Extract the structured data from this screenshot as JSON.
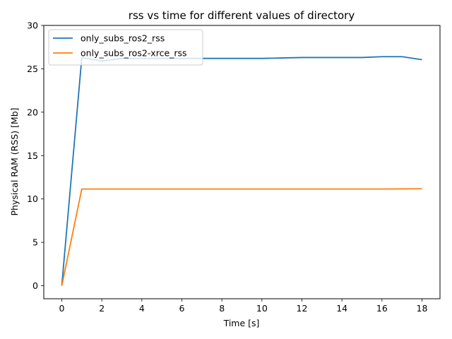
{
  "chart_data": {
    "type": "line",
    "title": "rss vs time for different values of directory",
    "xlabel": "Time [s]",
    "ylabel": "Physical RAM (RSS) [Mb]",
    "xlim": [
      -0.9,
      18.9
    ],
    "ylim": [
      -1.5,
      30
    ],
    "xticks": [
      0,
      2,
      4,
      6,
      8,
      10,
      12,
      14,
      16,
      18
    ],
    "yticks": [
      0,
      5,
      10,
      15,
      20,
      25,
      30
    ],
    "grid": false,
    "legend_position": "top-left",
    "series": [
      {
        "name": "only_subs_ros2_rss",
        "color": "#1f77b4",
        "x": [
          0,
          1,
          2,
          3,
          4,
          5,
          6,
          7,
          8,
          9,
          10,
          11,
          12,
          13,
          14,
          15,
          16,
          17,
          18
        ],
        "y": [
          0,
          26.3,
          25.9,
          26.2,
          26.2,
          26.2,
          26.2,
          26.2,
          26.2,
          26.2,
          26.2,
          26.25,
          26.3,
          26.3,
          26.3,
          26.3,
          26.4,
          26.4,
          26.05
        ]
      },
      {
        "name": "only_subs_ros2-xrce_rss",
        "color": "#ff7f0e",
        "x": [
          0,
          1,
          2,
          3,
          4,
          5,
          6,
          7,
          8,
          9,
          10,
          11,
          12,
          13,
          14,
          15,
          16,
          17,
          18
        ],
        "y": [
          0,
          11.15,
          11.15,
          11.15,
          11.15,
          11.15,
          11.15,
          11.15,
          11.15,
          11.15,
          11.15,
          11.15,
          11.15,
          11.15,
          11.15,
          11.15,
          11.15,
          11.16,
          11.18
        ]
      }
    ]
  }
}
